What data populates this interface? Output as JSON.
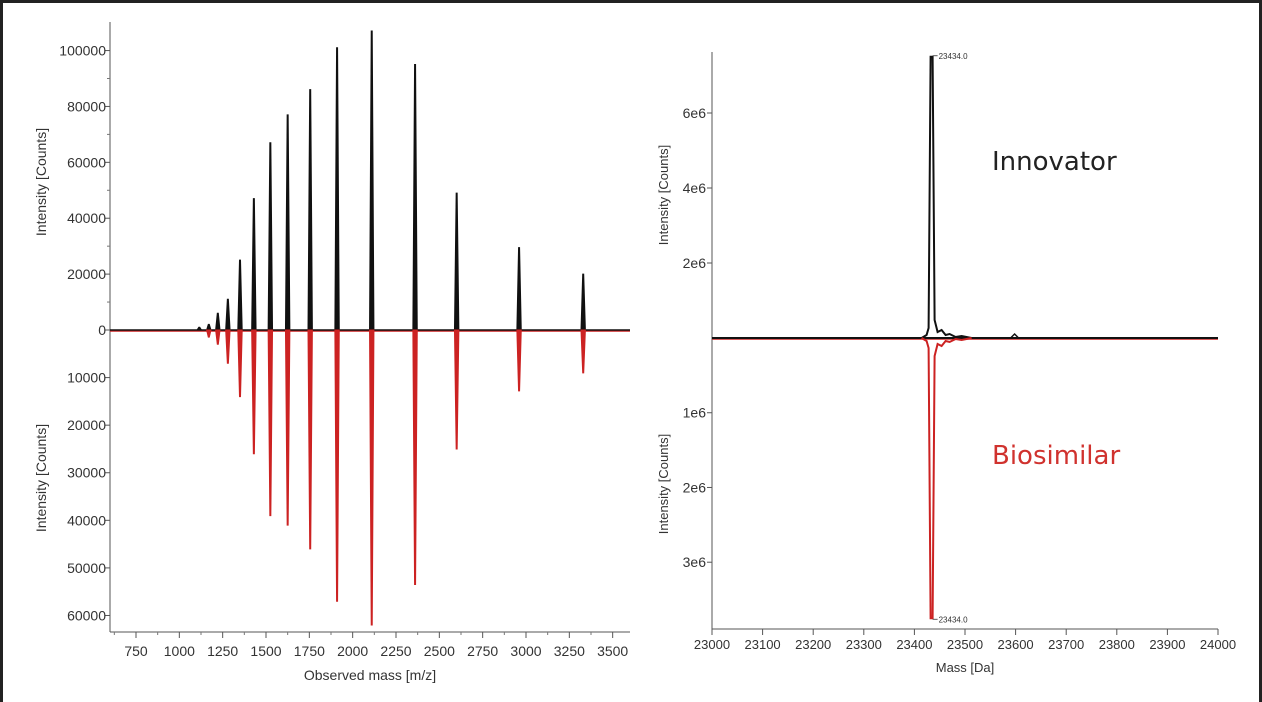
{
  "chart_data": [
    {
      "type": "line",
      "xlabel": "Observed mass [m/z]",
      "ylabel_top": "Intensity [Counts]",
      "ylabel_bottom": "Intensity [Counts]",
      "xlim": [
        600,
        3600
      ],
      "ylim_top": [
        0,
        107000
      ],
      "ylim_bottom": [
        0,
        62000
      ],
      "xticks": [
        750,
        1000,
        1250,
        1500,
        1750,
        2000,
        2250,
        2500,
        2750,
        3000,
        3250,
        3500
      ],
      "yticks_top": [
        0,
        20000,
        40000,
        60000,
        80000,
        100000
      ],
      "yticks_bottom": [
        10000,
        20000,
        30000,
        40000,
        50000,
        60000
      ],
      "series": [
        {
          "color": "#111111",
          "direction": "up",
          "x": [
            1115,
            1170,
            1222,
            1280,
            1350,
            1430,
            1525,
            1625,
            1755,
            1910,
            2110,
            2360,
            2600,
            2960,
            3330
          ],
          "values": [
            1000,
            2000,
            6000,
            11000,
            25000,
            47000,
            67000,
            77000,
            86000,
            101000,
            107000,
            95000,
            49000,
            29500,
            20000
          ]
        },
        {
          "color": "#cc2222",
          "direction": "down",
          "x": [
            1115,
            1170,
            1222,
            1280,
            1350,
            1430,
            1525,
            1625,
            1755,
            1910,
            2110,
            2360,
            2600,
            2960,
            3330
          ],
          "values": [
            0,
            1500,
            3000,
            7000,
            14000,
            26000,
            39000,
            41000,
            46000,
            57000,
            62000,
            53500,
            25000,
            12800,
            9000
          ]
        }
      ]
    },
    {
      "type": "line",
      "xlabel": "Mass [Da]",
      "ylabel_top": "Intensity [Counts]",
      "ylabel_bottom": "Intensity [Counts]",
      "xlim": [
        23000,
        24000
      ],
      "ylim_top": [
        0,
        7600000
      ],
      "ylim_bottom": [
        0,
        3800000
      ],
      "xticks": [
        23000,
        23100,
        23200,
        23300,
        23400,
        23500,
        23600,
        23700,
        23800,
        23900,
        24000
      ],
      "yticks_top_values": [
        2000000,
        4000000,
        6000000
      ],
      "yticks_top": [
        "2e6",
        "4e6",
        "6e6"
      ],
      "yticks_bottom_values": [
        1000000,
        2000000,
        3000000
      ],
      "yticks_bottom": [
        "1e6",
        "2e6",
        "3e6"
      ],
      "series": [
        {
          "name": "Innovator",
          "color": "#111111",
          "direction": "up",
          "peak_x": 23434.0,
          "peak_value": 7500000,
          "peak_label": "23434.0"
        },
        {
          "name": "Biosimilar",
          "color": "#cc2222",
          "direction": "down",
          "peak_x": 23434.0,
          "peak_value": 3750000,
          "peak_label": "23434.0"
        }
      ]
    }
  ]
}
